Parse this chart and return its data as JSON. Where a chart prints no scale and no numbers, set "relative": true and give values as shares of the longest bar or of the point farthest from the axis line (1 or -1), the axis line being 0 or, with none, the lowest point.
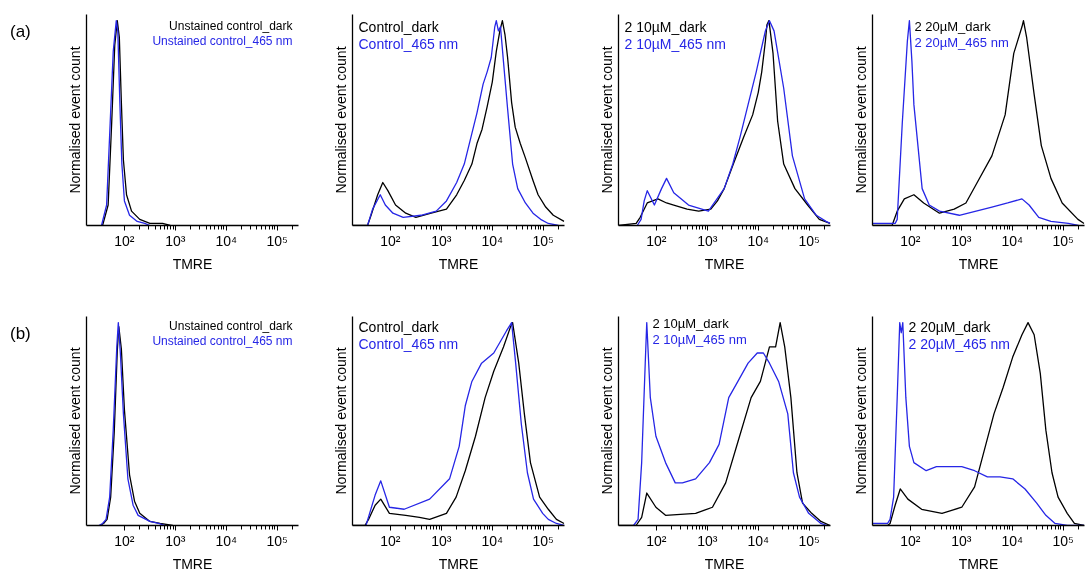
{
  "chart_data": [
    {
      "type": "line",
      "xlabel": "TMRE",
      "ylabel": "Normalised event count",
      "annotations": [
        "(a)"
      ],
      "relative": true,
      "log": "x",
      "xlim": [
        18,
        262144
      ],
      "legend": "top right",
      "xticks": [
        {
          "value": 100,
          "label": "10²"
        },
        {
          "value": 200,
          "label": null
        },
        {
          "value": 300,
          "label": null
        },
        {
          "value": 400,
          "label": null
        },
        {
          "value": 500,
          "label": null
        },
        {
          "value": 600,
          "label": null
        },
        {
          "value": 700,
          "label": null
        },
        {
          "value": 800,
          "label": null
        },
        {
          "value": 900,
          "label": null
        },
        {
          "value": 1000,
          "label": "10³"
        },
        {
          "value": 2000,
          "label": null
        },
        {
          "value": 3000,
          "label": null
        },
        {
          "value": 4000,
          "label": null
        },
        {
          "value": 5000,
          "label": null
        },
        {
          "value": 6000,
          "label": null
        },
        {
          "value": 7000,
          "label": null
        },
        {
          "value": 8000,
          "label": null
        },
        {
          "value": 9000,
          "label": null
        },
        {
          "value": 10000,
          "label": "10⁴"
        },
        {
          "value": 20000,
          "label": null
        },
        {
          "value": 30000,
          "label": null
        },
        {
          "value": 40000,
          "label": null
        },
        {
          "value": 50000,
          "label": null
        },
        {
          "value": 60000,
          "label": null
        },
        {
          "value": 70000,
          "label": null
        },
        {
          "value": 80000,
          "label": null
        },
        {
          "value": 90000,
          "label": null
        },
        {
          "value": 100000,
          "label": "10⁵"
        },
        {
          "value": 200000,
          "label": null
        }
      ],
      "series": [
        {
          "name": "Unstained control_dark",
          "color": "#000000",
          "x": [
            37.2,
            47.9,
            56.2,
            64.6,
            72.4,
            79.4,
            87.1,
            95.5,
            110,
            138,
            200,
            316,
            562,
            794
          ],
          "values": [
            0,
            0.1,
            0.5,
            0.88,
            1.0,
            0.92,
            0.6,
            0.32,
            0.15,
            0.07,
            0.03,
            0.01,
            0.01,
            0
          ]
        },
        {
          "name": "Unstained control_465 nm",
          "color": "#2626e6",
          "x": [
            35.5,
            44.7,
            52.5,
            60.3,
            69.2,
            74.1,
            81.3,
            89.1,
            100,
            126,
            178,
            251,
            316
          ],
          "values": [
            0,
            0.1,
            0.5,
            0.85,
            1.0,
            0.95,
            0.6,
            0.3,
            0.12,
            0.05,
            0.02,
            0.01,
            0
          ]
        }
      ]
    },
    {
      "type": "line",
      "xlabel": "TMRE",
      "ylabel": "Normalised event count",
      "relative": true,
      "log": "x",
      "xlim": [
        18,
        262144
      ],
      "legend": "top left",
      "xticks": [
        {
          "value": 100,
          "label": "10²"
        },
        {
          "value": 200,
          "label": null
        },
        {
          "value": 300,
          "label": null
        },
        {
          "value": 400,
          "label": null
        },
        {
          "value": 500,
          "label": null
        },
        {
          "value": 600,
          "label": null
        },
        {
          "value": 700,
          "label": null
        },
        {
          "value": 800,
          "label": null
        },
        {
          "value": 900,
          "label": null
        },
        {
          "value": 1000,
          "label": "10³"
        },
        {
          "value": 2000,
          "label": null
        },
        {
          "value": 3000,
          "label": null
        },
        {
          "value": 4000,
          "label": null
        },
        {
          "value": 5000,
          "label": null
        },
        {
          "value": 6000,
          "label": null
        },
        {
          "value": 7000,
          "label": null
        },
        {
          "value": 8000,
          "label": null
        },
        {
          "value": 9000,
          "label": null
        },
        {
          "value": 10000,
          "label": "10⁴"
        },
        {
          "value": 20000,
          "label": null
        },
        {
          "value": 30000,
          "label": null
        },
        {
          "value": 40000,
          "label": null
        },
        {
          "value": 50000,
          "label": null
        },
        {
          "value": 60000,
          "label": null
        },
        {
          "value": 70000,
          "label": null
        },
        {
          "value": 80000,
          "label": null
        },
        {
          "value": 90000,
          "label": null
        },
        {
          "value": 100000,
          "label": "10⁵"
        },
        {
          "value": 200000,
          "label": null
        }
      ],
      "series": [
        {
          "name": "Control_dark",
          "color": "#000000",
          "x": [
            18,
            35.5,
            41.7,
            56.2,
            70.8,
            89.1,
            126,
            200,
            316,
            631,
            1260,
            2000,
            2820,
            3980,
            5010,
            6310,
            7940,
            10000,
            12000,
            14100,
            15800,
            17800,
            20000,
            24000,
            28200,
            35500,
            44700,
            63100,
            79400,
            112000,
            158000,
            257000
          ],
          "values": [
            0,
            0,
            0.05,
            0.15,
            0.21,
            0.17,
            0.1,
            0.06,
            0.04,
            0.06,
            0.08,
            0.15,
            0.22,
            0.3,
            0.4,
            0.47,
            0.58,
            0.7,
            0.85,
            0.95,
            1.0,
            0.93,
            0.82,
            0.6,
            0.48,
            0.4,
            0.33,
            0.22,
            0.15,
            0.09,
            0.05,
            0.02
          ]
        },
        {
          "name": "Control_465 nm",
          "color": "#2626e6",
          "x": [
            35.5,
            44.7,
            63.1,
            79.4,
            112,
            178,
            398,
            794,
            1260,
            2000,
            2820,
            3980,
            5010,
            6610,
            7940,
            9550,
            11200,
            12000,
            13200,
            14500,
            16600,
            20000,
            25100,
            31600,
            44700,
            63100,
            89100,
            126000,
            200000
          ],
          "values": [
            0,
            0.08,
            0.15,
            0.1,
            0.06,
            0.04,
            0.05,
            0.07,
            0.12,
            0.21,
            0.3,
            0.45,
            0.55,
            0.69,
            0.75,
            0.82,
            0.97,
            1.0,
            0.95,
            0.97,
            0.8,
            0.57,
            0.3,
            0.18,
            0.11,
            0.06,
            0.03,
            0.01,
            0
          ]
        }
      ]
    },
    {
      "type": "line",
      "xlabel": "TMRE",
      "ylabel": "Normalised event count",
      "relative": true,
      "log": "x",
      "xlim": [
        18,
        262144
      ],
      "legend": "top left",
      "xticks": [
        {
          "value": 100,
          "label": "10²"
        },
        {
          "value": 200,
          "label": null
        },
        {
          "value": 300,
          "label": null
        },
        {
          "value": 400,
          "label": null
        },
        {
          "value": 500,
          "label": null
        },
        {
          "value": 600,
          "label": null
        },
        {
          "value": 700,
          "label": null
        },
        {
          "value": 800,
          "label": null
        },
        {
          "value": 900,
          "label": null
        },
        {
          "value": 1000,
          "label": "10³"
        },
        {
          "value": 2000,
          "label": null
        },
        {
          "value": 3000,
          "label": null
        },
        {
          "value": 4000,
          "label": null
        },
        {
          "value": 5000,
          "label": null
        },
        {
          "value": 6000,
          "label": null
        },
        {
          "value": 7000,
          "label": null
        },
        {
          "value": 8000,
          "label": null
        },
        {
          "value": 9000,
          "label": null
        },
        {
          "value": 10000,
          "label": "10⁴"
        },
        {
          "value": 20000,
          "label": null
        },
        {
          "value": 30000,
          "label": null
        },
        {
          "value": 40000,
          "label": null
        },
        {
          "value": 50000,
          "label": null
        },
        {
          "value": 60000,
          "label": null
        },
        {
          "value": 70000,
          "label": null
        },
        {
          "value": 80000,
          "label": null
        },
        {
          "value": 90000,
          "label": null
        },
        {
          "value": 100000,
          "label": "10⁵"
        },
        {
          "value": 200000,
          "label": null
        }
      ],
      "series": [
        {
          "name": "2 10µM_dark",
          "color": "#000000",
          "x": [
            18,
            40,
            48,
            66,
            107,
            158,
            219,
            400,
            676,
            1170,
            1580,
            2140,
            3240,
            5130,
            7760,
            10000,
            11700,
            13800,
            14800,
            16200,
            19500,
            24000,
            31600,
            52500,
            93300,
            158000,
            257000
          ],
          "values": [
            0,
            0.01,
            0.04,
            0.11,
            0.13,
            0.11,
            0.1,
            0.08,
            0.07,
            0.08,
            0.12,
            0.18,
            0.3,
            0.43,
            0.54,
            0.65,
            0.75,
            0.9,
            0.98,
            1.0,
            0.84,
            0.51,
            0.3,
            0.18,
            0.1,
            0.03,
            0.01
          ]
        },
        {
          "name": "2 10µM_465 nm",
          "color": "#2626e6",
          "x": [
            42,
            50,
            57.5,
            66.1,
            91.2,
            126,
            158,
            219,
            427,
            1050,
            2140,
            3160,
            4370,
            6310,
            9120,
            11200,
            13800,
            16600,
            20400,
            31600,
            46800,
            81300,
            138000,
            214000,
            257000
          ],
          "values": [
            0,
            0.03,
            0.12,
            0.17,
            0.1,
            0.18,
            0.23,
            0.16,
            0.1,
            0.07,
            0.18,
            0.3,
            0.43,
            0.59,
            0.75,
            0.85,
            0.95,
            1.0,
            0.95,
            0.67,
            0.34,
            0.13,
            0.05,
            0.02,
            0.01
          ]
        }
      ]
    },
    {
      "type": "line",
      "xlabel": "TMRE",
      "ylabel": "Normalised event count",
      "relative": true,
      "log": "x",
      "xlim": [
        18,
        262144
      ],
      "legend": "top left",
      "xticks": [
        {
          "value": 100,
          "label": "10²"
        },
        {
          "value": 200,
          "label": null
        },
        {
          "value": 300,
          "label": null
        },
        {
          "value": 400,
          "label": null
        },
        {
          "value": 500,
          "label": null
        },
        {
          "value": 600,
          "label": null
        },
        {
          "value": 700,
          "label": null
        },
        {
          "value": 800,
          "label": null
        },
        {
          "value": 900,
          "label": null
        },
        {
          "value": 1000,
          "label": "10³"
        },
        {
          "value": 2000,
          "label": null
        },
        {
          "value": 3000,
          "label": null
        },
        {
          "value": 4000,
          "label": null
        },
        {
          "value": 5000,
          "label": null
        },
        {
          "value": 6000,
          "label": null
        },
        {
          "value": 7000,
          "label": null
        },
        {
          "value": 8000,
          "label": null
        },
        {
          "value": 9000,
          "label": null
        },
        {
          "value": 10000,
          "label": "10⁴"
        },
        {
          "value": 20000,
          "label": null
        },
        {
          "value": 30000,
          "label": null
        },
        {
          "value": 40000,
          "label": null
        },
        {
          "value": 50000,
          "label": null
        },
        {
          "value": 60000,
          "label": null
        },
        {
          "value": 70000,
          "label": null
        },
        {
          "value": 80000,
          "label": null
        },
        {
          "value": 90000,
          "label": null
        },
        {
          "value": 100000,
          "label": "10⁵"
        },
        {
          "value": 200000,
          "label": null
        }
      ],
      "series": [
        {
          "name": "2 20µM_dark",
          "color": "#000000",
          "x": [
            18,
            43.6,
            55,
            75.9,
            117,
            182,
            372,
            724,
            1230,
            1950,
            3980,
            7240,
            10700,
            15500,
            16600,
            19100,
            26900,
            37200,
            57500,
            95500,
            195000,
            257000
          ],
          "values": [
            0,
            0,
            0.07,
            0.13,
            0.15,
            0.11,
            0.06,
            0.08,
            0.11,
            0.2,
            0.34,
            0.54,
            0.84,
            0.97,
            1.0,
            0.92,
            0.64,
            0.39,
            0.23,
            0.11,
            0.03,
            0.01
          ]
        },
        {
          "name": "2 20µM_465 nm",
          "color": "#2626e6",
          "x": [
            18,
            50.1,
            55,
            69.2,
            87.1,
            95.5,
            107,
            117,
            170,
            234,
            372,
            912,
            1950,
            3980,
            8130,
            15500,
            21400,
            33100,
            57500,
            126000,
            200000
          ],
          "values": [
            0.01,
            0.01,
            0.03,
            0.5,
            0.9,
            1.0,
            0.8,
            0.59,
            0.18,
            0.1,
            0.07,
            0.05,
            0.07,
            0.09,
            0.11,
            0.13,
            0.1,
            0.04,
            0.02,
            0.01,
            0
          ]
        }
      ]
    },
    {
      "type": "line",
      "xlabel": "TMRE",
      "ylabel": "Normalised event count",
      "annotations": [
        "(b)"
      ],
      "relative": true,
      "log": "x",
      "xlim": [
        18,
        262144
      ],
      "legend": "top right",
      "xticks": [
        {
          "value": 100,
          "label": "10²"
        },
        {
          "value": 200,
          "label": null
        },
        {
          "value": 300,
          "label": null
        },
        {
          "value": 400,
          "label": null
        },
        {
          "value": 500,
          "label": null
        },
        {
          "value": 600,
          "label": null
        },
        {
          "value": 700,
          "label": null
        },
        {
          "value": 800,
          "label": null
        },
        {
          "value": 900,
          "label": null
        },
        {
          "value": 1000,
          "label": "10³"
        },
        {
          "value": 2000,
          "label": null
        },
        {
          "value": 3000,
          "label": null
        },
        {
          "value": 4000,
          "label": null
        },
        {
          "value": 5000,
          "label": null
        },
        {
          "value": 6000,
          "label": null
        },
        {
          "value": 7000,
          "label": null
        },
        {
          "value": 8000,
          "label": null
        },
        {
          "value": 9000,
          "label": null
        },
        {
          "value": 10000,
          "label": "10⁴"
        },
        {
          "value": 20000,
          "label": null
        },
        {
          "value": 30000,
          "label": null
        },
        {
          "value": 40000,
          "label": null
        },
        {
          "value": 50000,
          "label": null
        },
        {
          "value": 60000,
          "label": null
        },
        {
          "value": 70000,
          "label": null
        },
        {
          "value": 80000,
          "label": null
        },
        {
          "value": 90000,
          "label": null
        },
        {
          "value": 100000,
          "label": "10⁵"
        },
        {
          "value": 200000,
          "label": null
        }
      ],
      "series": [
        {
          "name": "Unstained control_dark",
          "color": "#000000",
          "x": [
            33.1,
            38.9,
            45.7,
            53.7,
            63.1,
            72.4,
            77.6,
            87.1,
            100,
            126,
            158,
            200,
            316,
            501,
            891
          ],
          "values": [
            0,
            0.01,
            0.03,
            0.14,
            0.46,
            0.86,
            0.98,
            0.87,
            0.57,
            0.25,
            0.12,
            0.06,
            0.02,
            0.01,
            0
          ]
        },
        {
          "name": "Unstained control_465 nm",
          "color": "#2626e6",
          "x": [
            31.6,
            37.2,
            43.6,
            51.3,
            60.3,
            70.8,
            75.9,
            83.2,
            95.5,
            117,
            148,
            186,
            316,
            468,
            631
          ],
          "values": [
            0,
            0.01,
            0.03,
            0.14,
            0.47,
            0.88,
            1.0,
            0.85,
            0.55,
            0.23,
            0.1,
            0.05,
            0.02,
            0.01,
            0
          ]
        }
      ]
    },
    {
      "type": "line",
      "xlabel": "TMRE",
      "ylabel": "Normalised event count",
      "relative": true,
      "log": "x",
      "xlim": [
        18,
        262144
      ],
      "legend": "top left",
      "xticks": [
        {
          "value": 100,
          "label": "10²"
        },
        {
          "value": 200,
          "label": null
        },
        {
          "value": 300,
          "label": null
        },
        {
          "value": 400,
          "label": null
        },
        {
          "value": 500,
          "label": null
        },
        {
          "value": 600,
          "label": null
        },
        {
          "value": 700,
          "label": null
        },
        {
          "value": 800,
          "label": null
        },
        {
          "value": 900,
          "label": null
        },
        {
          "value": 1000,
          "label": "10³"
        },
        {
          "value": 2000,
          "label": null
        },
        {
          "value": 3000,
          "label": null
        },
        {
          "value": 4000,
          "label": null
        },
        {
          "value": 5000,
          "label": null
        },
        {
          "value": 6000,
          "label": null
        },
        {
          "value": 7000,
          "label": null
        },
        {
          "value": 8000,
          "label": null
        },
        {
          "value": 9000,
          "label": null
        },
        {
          "value": 10000,
          "label": "10⁴"
        },
        {
          "value": 20000,
          "label": null
        },
        {
          "value": 30000,
          "label": null
        },
        {
          "value": 40000,
          "label": null
        },
        {
          "value": 50000,
          "label": null
        },
        {
          "value": 60000,
          "label": null
        },
        {
          "value": 70000,
          "label": null
        },
        {
          "value": 80000,
          "label": null
        },
        {
          "value": 90000,
          "label": null
        },
        {
          "value": 100000,
          "label": "10⁵"
        },
        {
          "value": 200000,
          "label": null
        }
      ],
      "series": [
        {
          "name": "Control_dark",
          "color": "#000000",
          "x": [
            18,
            31.6,
            37.2,
            50.1,
            64.6,
            95.5,
            200,
            372,
            589,
            1260,
            1950,
            2950,
            4680,
            7240,
            10700,
            16600,
            22900,
            25100,
            33100,
            42700,
            56200,
            85100,
            126000,
            182000,
            257000
          ],
          "values": [
            0,
            0,
            0.03,
            0.1,
            0.13,
            0.06,
            0.05,
            0.04,
            0.03,
            0.06,
            0.14,
            0.27,
            0.44,
            0.63,
            0.76,
            0.88,
            0.98,
            1.0,
            0.8,
            0.55,
            0.31,
            0.14,
            0.08,
            0.03,
            0.01
          ]
        },
        {
          "name": "Control_465 nm",
          "color": "#2626e6",
          "x": [
            33.1,
            38,
            50.1,
            64.6,
            95.5,
            186,
            589,
            1450,
            2240,
            2950,
            3980,
            6170,
            10700,
            19100,
            24000,
            28800,
            37200,
            49000,
            64600,
            97700,
            126000,
            182000,
            257000
          ],
          "values": [
            0,
            0.05,
            0.15,
            0.22,
            0.09,
            0.08,
            0.13,
            0.23,
            0.39,
            0.59,
            0.71,
            0.8,
            0.85,
            0.96,
            1.0,
            0.8,
            0.5,
            0.26,
            0.13,
            0.06,
            0.03,
            0.01,
            0
          ]
        }
      ]
    },
    {
      "type": "line",
      "xlabel": "TMRE",
      "ylabel": "Normalised event count",
      "relative": true,
      "log": "x",
      "xlim": [
        18,
        262144
      ],
      "legend": "top left",
      "xticks": [
        {
          "value": 100,
          "label": "10²"
        },
        {
          "value": 200,
          "label": null
        },
        {
          "value": 300,
          "label": null
        },
        {
          "value": 400,
          "label": null
        },
        {
          "value": 500,
          "label": null
        },
        {
          "value": 600,
          "label": null
        },
        {
          "value": 700,
          "label": null
        },
        {
          "value": 800,
          "label": null
        },
        {
          "value": 900,
          "label": null
        },
        {
          "value": 1000,
          "label": "10³"
        },
        {
          "value": 2000,
          "label": null
        },
        {
          "value": 3000,
          "label": null
        },
        {
          "value": 4000,
          "label": null
        },
        {
          "value": 5000,
          "label": null
        },
        {
          "value": 6000,
          "label": null
        },
        {
          "value": 7000,
          "label": null
        },
        {
          "value": 8000,
          "label": null
        },
        {
          "value": 9000,
          "label": null
        },
        {
          "value": 10000,
          "label": "10⁴"
        },
        {
          "value": 20000,
          "label": null
        },
        {
          "value": 30000,
          "label": null
        },
        {
          "value": 40000,
          "label": null
        },
        {
          "value": 50000,
          "label": null
        },
        {
          "value": 60000,
          "label": null
        },
        {
          "value": 70000,
          "label": null
        },
        {
          "value": 80000,
          "label": null
        },
        {
          "value": 90000,
          "label": null
        },
        {
          "value": 100000,
          "label": "10⁵"
        },
        {
          "value": 200000,
          "label": null
        }
      ],
      "series": [
        {
          "name": "2 10µM_dark",
          "color": "#000000",
          "x": [
            18,
            39.8,
            51.3,
            64.6,
            97.7,
            151,
            589,
            1260,
            2290,
            4070,
            7240,
            11000,
            16600,
            21900,
            26900,
            33100,
            43700,
            57500,
            74100,
            112000,
            170000,
            257000
          ],
          "values": [
            0,
            0,
            0.04,
            0.16,
            0.09,
            0.05,
            0.06,
            0.09,
            0.21,
            0.42,
            0.63,
            0.71,
            0.88,
            0.88,
            1.0,
            0.88,
            0.63,
            0.26,
            0.11,
            0.06,
            0.02,
            0
          ]
        },
        {
          "name": "2 10µM_465 nm",
          "color": "#2626e6",
          "x": [
            35.5,
            43.6,
            51.3,
            60.3,
            64.6,
            75.9,
            97.7,
            151,
            234,
            324,
            589,
            1100,
            1700,
            2630,
            3980,
            6310,
            9550,
            12600,
            16600,
            25100,
            38000,
            49000,
            64600,
            97700,
            170000,
            224000
          ],
          "values": [
            0,
            0.03,
            0.31,
            0.8,
            1.0,
            0.63,
            0.44,
            0.31,
            0.21,
            0.21,
            0.23,
            0.31,
            0.4,
            0.63,
            0.71,
            0.8,
            0.85,
            0.85,
            0.8,
            0.71,
            0.55,
            0.26,
            0.14,
            0.06,
            0.01,
            0
          ]
        }
      ]
    },
    {
      "type": "line",
      "xlabel": "TMRE",
      "ylabel": "Normalised event count",
      "relative": true,
      "log": "x",
      "xlim": [
        18,
        262144
      ],
      "legend": "top left",
      "xticks": [
        {
          "value": 100,
          "label": "10²"
        },
        {
          "value": 200,
          "label": null
        },
        {
          "value": 300,
          "label": null
        },
        {
          "value": 400,
          "label": null
        },
        {
          "value": 500,
          "label": null
        },
        {
          "value": 600,
          "label": null
        },
        {
          "value": 700,
          "label": null
        },
        {
          "value": 800,
          "label": null
        },
        {
          "value": 900,
          "label": null
        },
        {
          "value": 1000,
          "label": "10³"
        },
        {
          "value": 2000,
          "label": null
        },
        {
          "value": 3000,
          "label": null
        },
        {
          "value": 4000,
          "label": null
        },
        {
          "value": 5000,
          "label": null
        },
        {
          "value": 6000,
          "label": null
        },
        {
          "value": 7000,
          "label": null
        },
        {
          "value": 8000,
          "label": null
        },
        {
          "value": 9000,
          "label": null
        },
        {
          "value": 10000,
          "label": "10⁴"
        },
        {
          "value": 20000,
          "label": null
        },
        {
          "value": 30000,
          "label": null
        },
        {
          "value": 40000,
          "label": null
        },
        {
          "value": 50000,
          "label": null
        },
        {
          "value": 60000,
          "label": null
        },
        {
          "value": 70000,
          "label": null
        },
        {
          "value": 80000,
          "label": null
        },
        {
          "value": 90000,
          "label": null
        },
        {
          "value": 100000,
          "label": "10⁵"
        },
        {
          "value": 200000,
          "label": null
        }
      ],
      "series": [
        {
          "name": "2 20µM_dark",
          "color": "#000000",
          "x": [
            18,
            35.5,
            39.8,
            50.1,
            63.1,
            89.1,
            166,
            417,
            1020,
            1820,
            2820,
            4370,
            6610,
            10200,
            15500,
            20400,
            26900,
            35500,
            45700,
            60300,
            79400,
            120000,
            166000,
            257000
          ],
          "values": [
            0,
            0,
            0.01,
            0.1,
            0.18,
            0.13,
            0.08,
            0.06,
            0.09,
            0.19,
            0.37,
            0.55,
            0.68,
            0.83,
            0.94,
            1.0,
            0.94,
            0.75,
            0.47,
            0.26,
            0.14,
            0.06,
            0.01,
            0
          ]
        },
        {
          "name": "2 20µM_465 nm",
          "color": "#2626e6",
          "x": [
            18,
            35.5,
            39.8,
            46.8,
            55,
            61.7,
            66.1,
            70.8,
            81.3,
            95.5,
            117,
            204,
            324,
            1020,
            1820,
            3240,
            5750,
            10200,
            17800,
            30200,
            45700,
            69200,
            120000,
            257000
          ],
          "values": [
            0.01,
            0.01,
            0.03,
            0.14,
            0.63,
            1.0,
            0.95,
            1.0,
            0.63,
            0.39,
            0.31,
            0.27,
            0.29,
            0.29,
            0.27,
            0.24,
            0.24,
            0.23,
            0.18,
            0.11,
            0.05,
            0.01,
            0,
            0
          ]
        }
      ]
    }
  ]
}
